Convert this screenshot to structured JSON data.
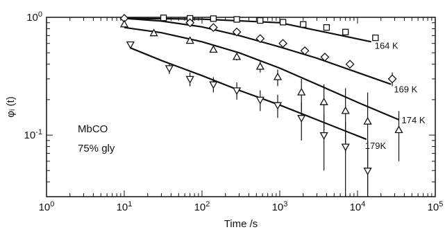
{
  "chart_data": {
    "type": "scatter",
    "xscale": "log",
    "yscale": "log",
    "xlim": [
      1,
      100000
    ],
    "ylim": [
      0.03,
      1
    ],
    "xlabel": "Time /s",
    "ylabel": "φᵢ (t)",
    "x_ticks": [
      {
        "value": 1,
        "base": "10",
        "exp": "0"
      },
      {
        "value": 10,
        "base": "10",
        "exp": "1"
      },
      {
        "value": 100,
        "base": "10",
        "exp": "2"
      },
      {
        "value": 1000,
        "base": "10",
        "exp": "3"
      },
      {
        "value": 10000,
        "base": "10",
        "exp": "4"
      },
      {
        "value": 100000,
        "base": "10",
        "exp": "5"
      }
    ],
    "y_ticks": [
      {
        "value": 0.1,
        "base": "10",
        "exp": "-1"
      },
      {
        "value": 1,
        "base": "10",
        "exp": "0"
      }
    ],
    "annotations": [
      "MbCO",
      "75% gly"
    ],
    "series": [
      {
        "name": "164 K",
        "marker": "square",
        "x": [
          32,
          70,
          140,
          280,
          560,
          1100,
          2000,
          4000,
          7000,
          17000
        ],
        "y": [
          0.99,
          0.98,
          0.975,
          0.96,
          0.94,
          0.91,
          0.87,
          0.82,
          0.75,
          0.67
        ],
        "fit": {
          "x": [
            10,
            100,
            1000,
            15000
          ],
          "y": [
            0.98,
            0.965,
            0.9,
            0.62
          ]
        }
      },
      {
        "name": "169 K",
        "marker": "diamond",
        "x": [
          10,
          70,
          140,
          280,
          560,
          1100,
          2100,
          3800,
          8000,
          28000
        ],
        "y": [
          0.98,
          0.9,
          0.82,
          0.75,
          0.66,
          0.6,
          0.52,
          0.46,
          0.4,
          0.3
        ],
        "yerr": [
          0,
          0,
          0,
          0,
          0,
          0,
          0,
          0,
          0,
          0.04
        ],
        "fit": {
          "x": [
            10,
            30,
            100,
            300,
            1000,
            3000,
            27000
          ],
          "y": [
            0.98,
            0.93,
            0.83,
            0.7,
            0.56,
            0.45,
            0.27
          ]
        }
      },
      {
        "name": "174 K",
        "marker": "triangle-up",
        "x": [
          10,
          24,
          70,
          140,
          280,
          560,
          940,
          1900,
          3700,
          7000,
          13500,
          34000
        ],
        "y": [
          0.87,
          0.73,
          0.63,
          0.53,
          0.46,
          0.38,
          0.31,
          0.23,
          0.19,
          0.16,
          0.13,
          0.11
        ],
        "yerr": [
          0,
          0,
          0,
          0,
          0.03,
          0.04,
          0.05,
          0.07,
          0.08,
          0.09,
          0.1,
          0.05
        ],
        "fit": {
          "x": [
            10,
            30,
            100,
            300,
            1000,
            3000,
            10000,
            34000
          ],
          "y": [
            0.82,
            0.74,
            0.62,
            0.5,
            0.37,
            0.27,
            0.19,
            0.135
          ]
        }
      },
      {
        "name": "179K",
        "marker": "triangle-down",
        "x": [
          12,
          38,
          70,
          140,
          280,
          560,
          940,
          1900,
          3700,
          7000,
          13500
        ],
        "y": [
          0.59,
          0.37,
          0.3,
          0.27,
          0.24,
          0.2,
          0.18,
          0.14,
          0.1,
          0.08,
          0.05
        ],
        "yerr": [
          0,
          0.04,
          0.04,
          0.04,
          0.04,
          0.04,
          0.04,
          0.05,
          0.05,
          0.05,
          0.04
        ],
        "fit": {
          "x": [
            12,
            30,
            100,
            300,
            1000,
            3000,
            13000
          ],
          "y": [
            0.55,
            0.43,
            0.32,
            0.24,
            0.18,
            0.135,
            0.092
          ]
        }
      }
    ]
  }
}
